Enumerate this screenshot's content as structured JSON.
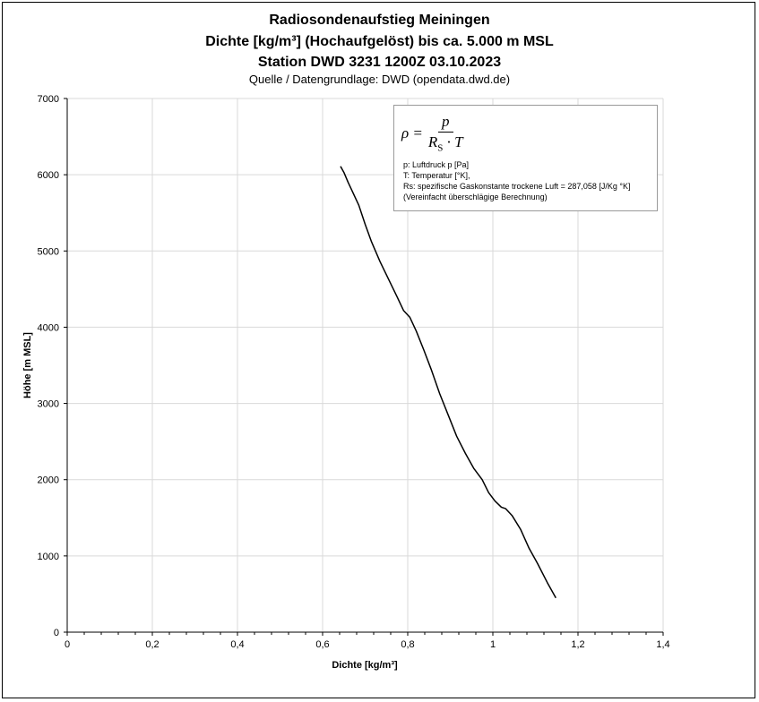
{
  "chart_data": {
    "type": "line",
    "title": "Radiosondenaufstieg Meiningen",
    "subtitle_lines": [
      "Dichte [kg/m³] (Hochaufgelöst) bis ca. 5.000 m MSL",
      "Station DWD 3231 1200Z 03.10.2023"
    ],
    "source": "Quelle / Datengrundlage: DWD (opendata.dwd.de)",
    "xlabel": "Dichte [kg/m³]",
    "ylabel": "Höhe [m MSL]",
    "xlim": [
      0,
      1.4
    ],
    "ylim": [
      0,
      7000
    ],
    "x_ticks": [
      {
        "value": 0,
        "label": "0"
      },
      {
        "value": 0.2,
        "label": "0,2"
      },
      {
        "value": 0.4,
        "label": "0,4"
      },
      {
        "value": 0.6,
        "label": "0,6"
      },
      {
        "value": 0.8,
        "label": "0,8"
      },
      {
        "value": 1.0,
        "label": "1"
      },
      {
        "value": 1.2,
        "label": "1,2"
      },
      {
        "value": 1.4,
        "label": "1,4"
      }
    ],
    "y_ticks": [
      {
        "value": 0,
        "label": "0"
      },
      {
        "value": 1000,
        "label": "1000"
      },
      {
        "value": 2000,
        "label": "2000"
      },
      {
        "value": 3000,
        "label": "3000"
      },
      {
        "value": 4000,
        "label": "4000"
      },
      {
        "value": 5000,
        "label": "5000"
      },
      {
        "value": 6000,
        "label": "6000"
      },
      {
        "value": 7000,
        "label": "7000"
      }
    ],
    "grid": true,
    "legend": "none",
    "series": [
      {
        "color": "#000000",
        "points": [
          {
            "x": 1.148,
            "y": 450
          },
          {
            "x": 1.128,
            "y": 650
          },
          {
            "x": 1.105,
            "y": 900
          },
          {
            "x": 1.085,
            "y": 1100
          },
          {
            "x": 1.065,
            "y": 1350
          },
          {
            "x": 1.045,
            "y": 1530
          },
          {
            "x": 1.03,
            "y": 1620
          },
          {
            "x": 1.02,
            "y": 1640
          },
          {
            "x": 1.005,
            "y": 1720
          },
          {
            "x": 0.99,
            "y": 1830
          },
          {
            "x": 0.975,
            "y": 2000
          },
          {
            "x": 0.955,
            "y": 2150
          },
          {
            "x": 0.935,
            "y": 2350
          },
          {
            "x": 0.915,
            "y": 2570
          },
          {
            "x": 0.895,
            "y": 2850
          },
          {
            "x": 0.875,
            "y": 3130
          },
          {
            "x": 0.855,
            "y": 3450
          },
          {
            "x": 0.838,
            "y": 3700
          },
          {
            "x": 0.82,
            "y": 3950
          },
          {
            "x": 0.805,
            "y": 4130
          },
          {
            "x": 0.79,
            "y": 4220
          },
          {
            "x": 0.775,
            "y": 4400
          },
          {
            "x": 0.755,
            "y": 4630
          },
          {
            "x": 0.735,
            "y": 4860
          },
          {
            "x": 0.715,
            "y": 5120
          },
          {
            "x": 0.7,
            "y": 5350
          },
          {
            "x": 0.685,
            "y": 5600
          },
          {
            "x": 0.67,
            "y": 5780
          },
          {
            "x": 0.66,
            "y": 5900
          },
          {
            "x": 0.65,
            "y": 6030
          },
          {
            "x": 0.642,
            "y": 6110
          }
        ]
      }
    ],
    "annotation": {
      "formula_lhs": "ρ =",
      "formula_num": "p",
      "formula_den_base": "R",
      "formula_den_sub": "S",
      "formula_den_rest": " · T",
      "notes": [
        "p: Luftdruck p [Pa]",
        "T: Temperatur [°K],",
        "Rs: spezifische Gaskonstante trockene Luft = 287,058 [J/Kg °K]",
        "(Vereinfacht überschlägige Berechnung)"
      ]
    }
  }
}
